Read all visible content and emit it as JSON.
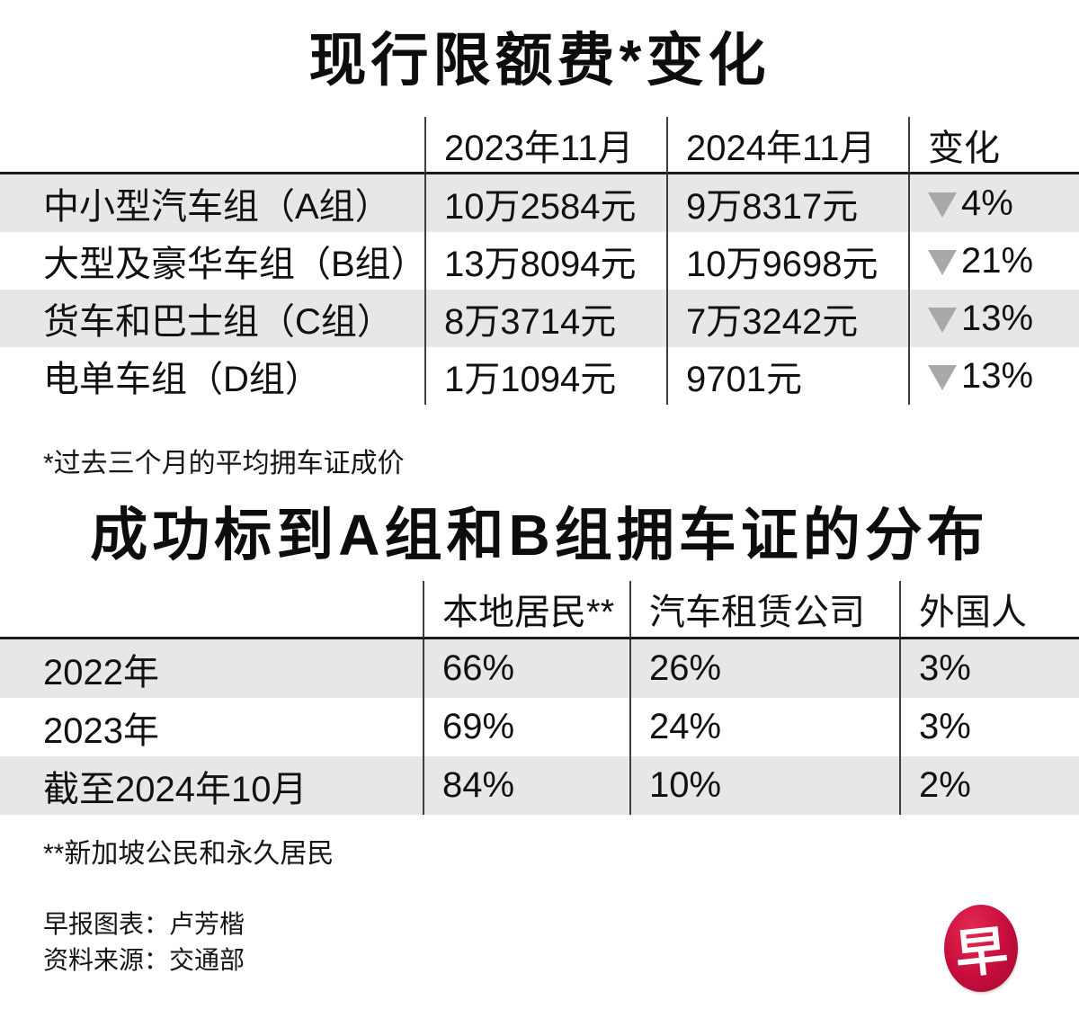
{
  "table1": {
    "title": "现行限额费*变化",
    "columns": [
      "2023年11月",
      "2024年11月",
      "变化"
    ],
    "rows": [
      {
        "label": "中小型汽车组（A组）",
        "nov_2023": "10万2584元",
        "nov_2024": "9万8317元",
        "change": "4%",
        "direction": "down"
      },
      {
        "label": "大型及豪华车组（B组）",
        "nov_2023": "13万8094元",
        "nov_2024": "10万9698元",
        "change": "21%",
        "direction": "down"
      },
      {
        "label": "货车和巴士组（C组）",
        "nov_2023": "8万3714元",
        "nov_2024": "7万3242元",
        "change": "13%",
        "direction": "down"
      },
      {
        "label": "电单车组（D组）",
        "nov_2023": "1万1094元",
        "nov_2024": "9701元",
        "change": "13%",
        "direction": "down"
      }
    ],
    "footnote": "*过去三个月的平均拥车证成价"
  },
  "table2": {
    "title": "成功标到A组和B组拥车证的分布",
    "columns": [
      "本地居民**",
      "汽车租赁公司",
      "外国人"
    ],
    "rows": [
      {
        "label": "2022年",
        "local_residents": "66%",
        "rental_companies": "26%",
        "foreigners": "3%"
      },
      {
        "label": "2023年",
        "local_residents": "69%",
        "rental_companies": "24%",
        "foreigners": "3%"
      },
      {
        "label": "截至2024年10月",
        "local_residents": "84%",
        "rental_companies": "10%",
        "foreigners": "2%"
      }
    ],
    "footnote": "**新加坡公民和永久居民"
  },
  "credits": {
    "chart_credit": "早报图表：卢芳楷",
    "source": "资料来源：交通部"
  },
  "logo": {
    "glyph": "早",
    "color": "#c40d3c"
  },
  "colors": {
    "row_stripe": "#e7e7e8",
    "heavy_rule": "#1b1b1b",
    "column_divider": "#3e3e3e",
    "down_triangle": "#a8a8aa",
    "text": "#111111",
    "background": "#ffffff"
  },
  "chart_data": [
    {
      "type": "table",
      "title": "现行限额费*变化",
      "columns": [
        "",
        "2023年11月",
        "2024年11月",
        "变化"
      ],
      "rows": [
        [
          "中小型汽车组（A组）",
          "10万2584元",
          "9万8317元",
          "▼4%"
        ],
        [
          "大型及豪华车组（B组）",
          "13万8094元",
          "10万9698元",
          "▼21%"
        ],
        [
          "货车和巴士组（C组）",
          "8万3714元",
          "7万3242元",
          "▼13%"
        ],
        [
          "电单车组（D组）",
          "1万1094元",
          "9701元",
          "▼13%"
        ]
      ],
      "footnote": "*过去三个月的平均拥车证成价"
    },
    {
      "type": "table",
      "title": "成功标到A组和B组拥车证的分布",
      "columns": [
        "",
        "本地居民**",
        "汽车租赁公司",
        "外国人"
      ],
      "rows": [
        [
          "2022年",
          "66%",
          "26%",
          "3%"
        ],
        [
          "2023年",
          "69%",
          "24%",
          "3%"
        ],
        [
          "截至2024年10月",
          "84%",
          "10%",
          "2%"
        ]
      ],
      "footnote": "**新加坡公民和永久居民"
    }
  ]
}
